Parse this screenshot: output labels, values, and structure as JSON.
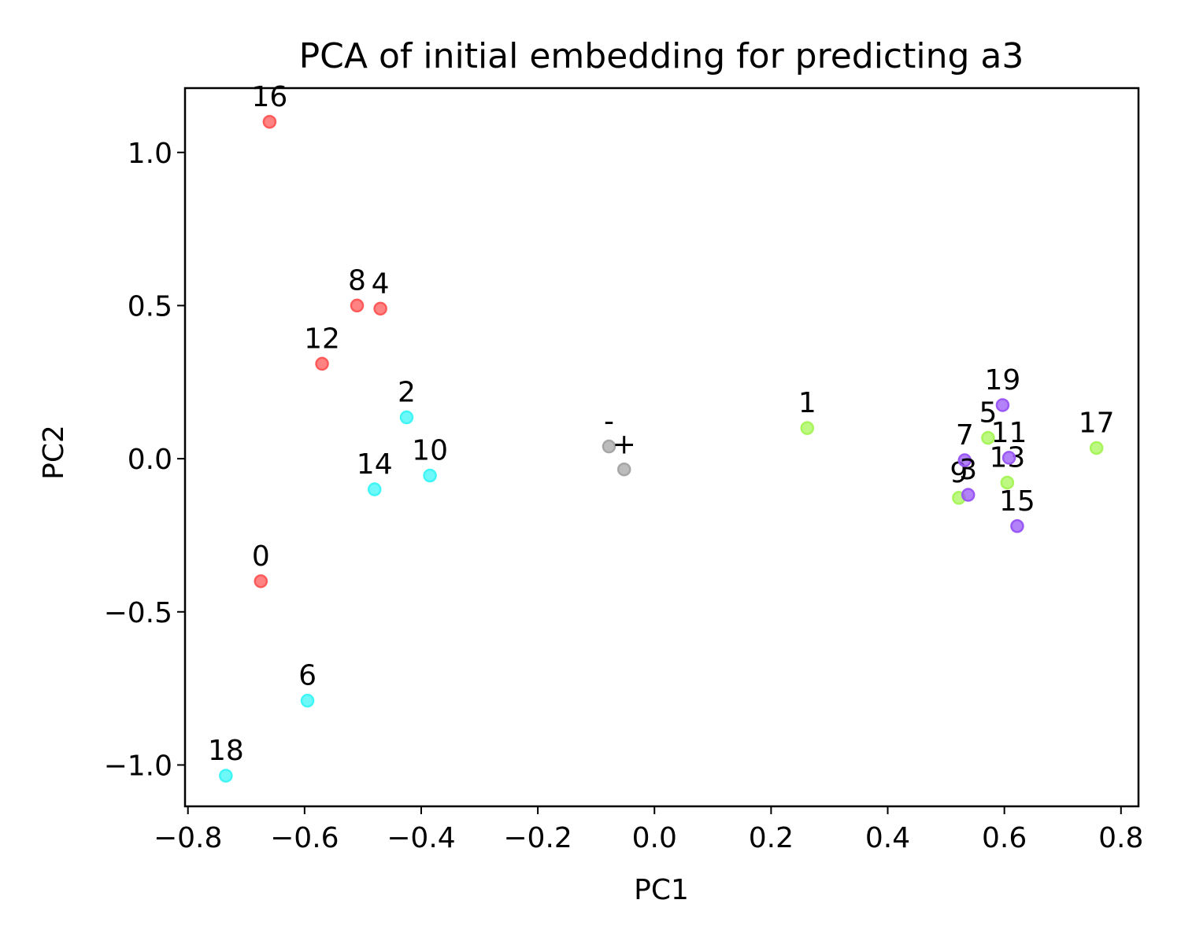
{
  "chart_data": {
    "type": "scatter",
    "title": "PCA of initial embedding for predicting a3",
    "xlabel": "PC1",
    "ylabel": "PC2",
    "xlim": [
      -0.805,
      0.83
    ],
    "ylim": [
      -1.135,
      1.21
    ],
    "xticks": [
      -0.8,
      -0.6,
      -0.4,
      -0.2,
      0.0,
      0.2,
      0.4,
      0.6,
      0.8
    ],
    "xtick_labels": [
      "−0.8",
      "−0.6",
      "−0.4",
      "−0.2",
      "0.0",
      "0.2",
      "0.4",
      "0.6",
      "0.8"
    ],
    "yticks": [
      1.0,
      0.5,
      0.0,
      -0.5,
      -1.0
    ],
    "ytick_labels": [
      "1.0",
      "0.5",
      "0.0",
      "−0.5",
      "−1.0"
    ],
    "grid": false,
    "colors": {
      "red": "#ff5a5a",
      "cyan": "#3ff5f5",
      "green": "#a7f55a",
      "purple": "#9a58f5",
      "gray": "#a6a6a6"
    },
    "points": [
      {
        "label": "16",
        "x": -0.66,
        "y": 1.1,
        "color": "red"
      },
      {
        "label": "8",
        "x": -0.51,
        "y": 0.5,
        "color": "red"
      },
      {
        "label": "4",
        "x": -0.47,
        "y": 0.49,
        "color": "red"
      },
      {
        "label": "12",
        "x": -0.57,
        "y": 0.31,
        "color": "red"
      },
      {
        "label": "0",
        "x": -0.675,
        "y": -0.4,
        "color": "red"
      },
      {
        "label": "2",
        "x": -0.425,
        "y": 0.135,
        "color": "cyan"
      },
      {
        "label": "10",
        "x": -0.385,
        "y": -0.055,
        "color": "cyan"
      },
      {
        "label": "14",
        "x": -0.48,
        "y": -0.1,
        "color": "cyan"
      },
      {
        "label": "6",
        "x": -0.595,
        "y": -0.79,
        "color": "cyan"
      },
      {
        "label": "18",
        "x": -0.735,
        "y": -1.035,
        "color": "cyan"
      },
      {
        "label": "-",
        "x": -0.078,
        "y": 0.04,
        "color": "gray"
      },
      {
        "label": "+",
        "x": -0.052,
        "y": -0.035,
        "color": "gray"
      },
      {
        "label": "1",
        "x": 0.262,
        "y": 0.1,
        "color": "green"
      },
      {
        "label": "5",
        "x": 0.572,
        "y": 0.068,
        "color": "green"
      },
      {
        "label": "17",
        "x": 0.758,
        "y": 0.035,
        "color": "green"
      },
      {
        "label": "9",
        "x": 0.522,
        "y": -0.128,
        "color": "green"
      },
      {
        "label": "13",
        "x": 0.605,
        "y": -0.078,
        "color": "green"
      },
      {
        "label": "19",
        "x": 0.597,
        "y": 0.175,
        "color": "purple"
      },
      {
        "label": "7",
        "x": 0.532,
        "y": -0.005,
        "color": "purple"
      },
      {
        "label": "11",
        "x": 0.608,
        "y": 0.003,
        "color": "purple"
      },
      {
        "label": "3",
        "x": 0.538,
        "y": -0.118,
        "color": "purple"
      },
      {
        "label": "15",
        "x": 0.622,
        "y": -0.22,
        "color": "purple"
      }
    ]
  }
}
